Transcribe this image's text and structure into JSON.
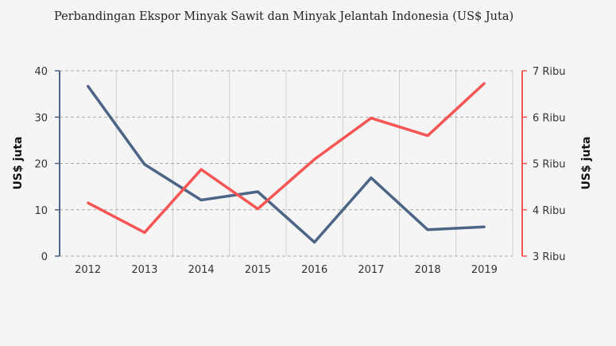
{
  "chart_data": {
    "type": "line",
    "title": "Perbandingan Ekspor Minyak Sawit dan Minyak Jelantah Indonesia (US$ Juta)",
    "categories": [
      "2012",
      "2013",
      "2014",
      "2015",
      "2016",
      "2017",
      "2018",
      "2019"
    ],
    "y_left": {
      "label": "US$ juta",
      "range": [
        0,
        40
      ],
      "ticks": [
        "0",
        "10",
        "20",
        "30",
        "40"
      ],
      "tick_values": [
        0,
        10,
        20,
        30,
        40
      ]
    },
    "y_right": {
      "label": "US$ juta",
      "range": [
        3,
        7
      ],
      "ticks": [
        "3 Ribu",
        "4 Ribu",
        "5 Ribu",
        "6 Ribu",
        "7 Ribu"
      ],
      "tick_values": [
        3,
        4,
        5,
        6,
        7
      ]
    },
    "grid": true,
    "series": [
      {
        "axis": "left",
        "color": "#4c6485",
        "values": [
          36.7,
          19.8,
          12.1,
          13.9,
          3.0,
          16.9,
          5.7,
          6.3
        ]
      },
      {
        "axis": "right",
        "color": "#f75454",
        "values": [
          4.15,
          3.51,
          4.87,
          4.02,
          5.09,
          5.98,
          5.6,
          6.73
        ]
      }
    ]
  }
}
